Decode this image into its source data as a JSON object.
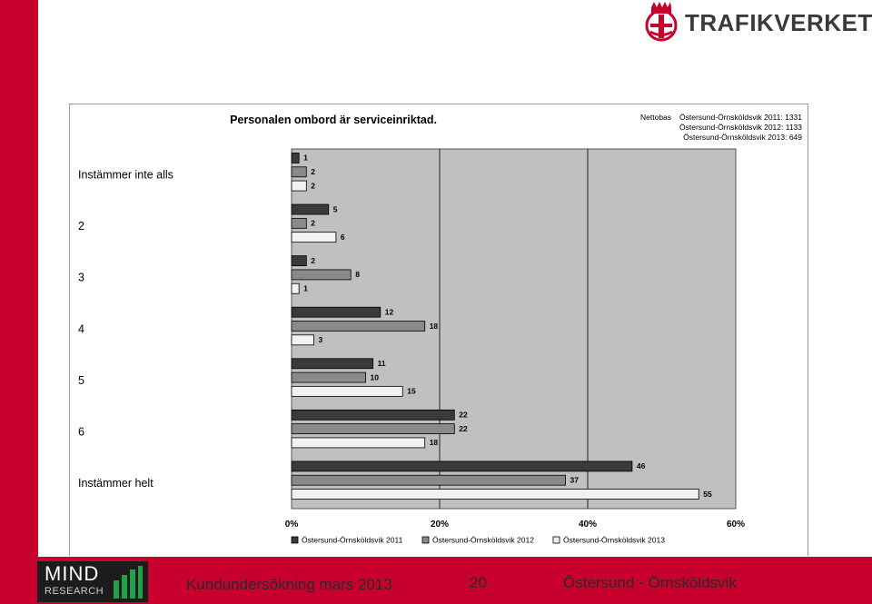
{
  "brand": {
    "name": "TRAFIKVERKET",
    "partner_name": "MIND",
    "partner_sub": "RESEARCH"
  },
  "footer": {
    "survey": "Kundundersökning mars 2013",
    "page_number": "20",
    "route": "Östersund - Örnsköldsvik"
  },
  "colors": {
    "brand_red": "#c8002d",
    "plot_bg": "#c0c0c0",
    "series_2011": "#3a3a3a",
    "series_2012": "#8a8a8a",
    "series_2013": "#f2f2f2"
  },
  "chart_data": {
    "type": "bar",
    "orientation": "horizontal",
    "title": "Personalen ombord är serviceinriktad.",
    "categories": [
      "Instämmer inte alls",
      "2",
      "3",
      "4",
      "5",
      "6",
      "Instämmer helt"
    ],
    "series": [
      {
        "name": "Östersund-Örnsköldsvik 2011",
        "values": [
          1,
          5,
          2,
          12,
          11,
          22,
          46
        ]
      },
      {
        "name": "Östersund-Örnsköldsvik 2012",
        "values": [
          2,
          2,
          8,
          18,
          10,
          22,
          37
        ]
      },
      {
        "name": "Östersund-Örnsköldsvik 2013",
        "values": [
          2,
          6,
          1,
          3,
          15,
          18,
          55
        ]
      }
    ],
    "xlim": [
      0,
      60
    ],
    "xticks": [
      "0%",
      "20%",
      "40%",
      "60%"
    ],
    "grid": "vertical",
    "legend": "bottom",
    "nettobas": {
      "label": "Nettobas",
      "entries": [
        "Östersund-Örnsköldsvik 2011: 1331",
        "Östersund-Örnsköldsvik 2012: 1133",
        "Östersund-Örnsköldsvik 2013: 649"
      ]
    }
  }
}
